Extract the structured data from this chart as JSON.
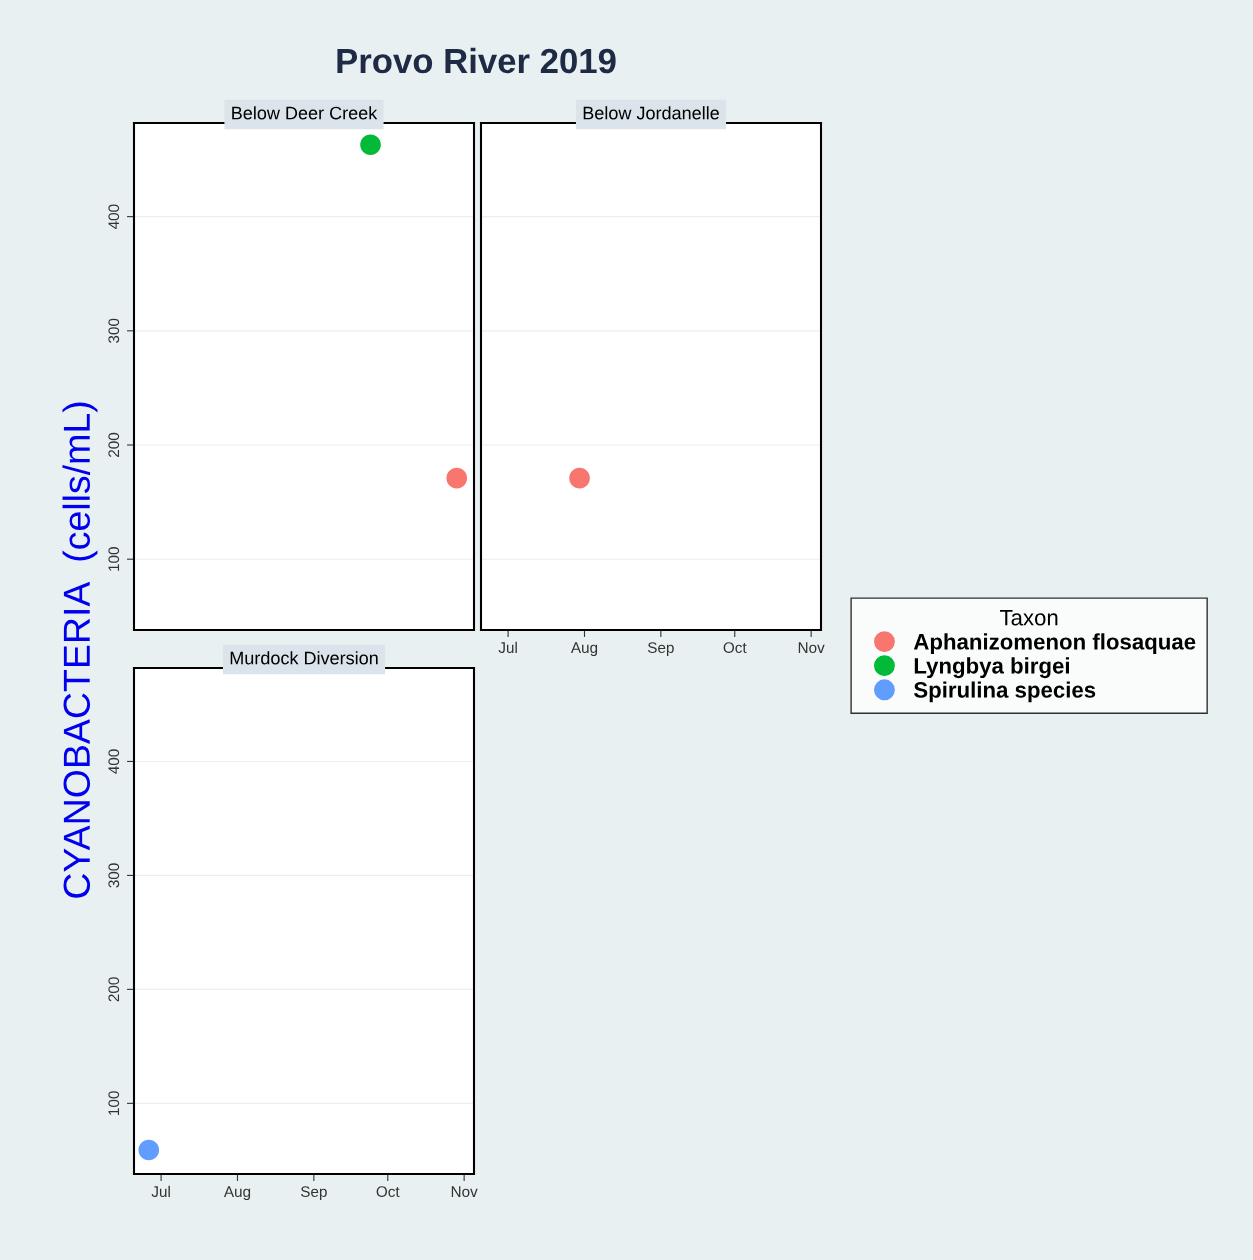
{
  "chart_data": [
    {
      "type": "scatter",
      "title": "Provo River 2019",
      "subtitle": "Below Deer Creek",
      "ylabel": "CYANOBACTERIA  (cells/mL)",
      "legend_title": "Taxon",
      "series": [
        {
          "name": "Aphanizomenon flosaquae",
          "color": "#f8766d",
          "x": [
            "2019-10-29"
          ],
          "values": [
            171
          ]
        },
        {
          "name": "Lyngbya birgei",
          "color": "#00ba38",
          "x": [
            "2019-09-24"
          ],
          "values": [
            463
          ]
        }
      ],
      "xlim": [
        "2019-06-20",
        "2019-11-05"
      ],
      "ylim": [
        38,
        482
      ],
      "yticks": [
        100,
        200,
        300,
        400
      ],
      "grid": "y",
      "marker": "circle",
      "tick_labels": "y",
      "legend": "right"
    },
    {
      "type": "scatter",
      "title": "Below Jordanelle",
      "series": [
        {
          "color": "#f8766d",
          "x": [
            "2019-07-30"
          ],
          "values": [
            171
          ]
        }
      ],
      "xlim": [
        "2019-06-20",
        "2019-11-05"
      ],
      "ylim": [
        38,
        482
      ],
      "xticks": [
        {
          "value": "2019-07-01",
          "label": "Jul"
        },
        {
          "value": "2019-08-01",
          "label": "Aug"
        },
        {
          "value": "2019-09-01",
          "label": "Sep"
        },
        {
          "value": "2019-10-01",
          "label": "Oct"
        },
        {
          "value": "2019-11-01",
          "label": "Nov"
        }
      ],
      "yticks": [
        100,
        200,
        300,
        400
      ],
      "grid": "y",
      "marker": "circle",
      "tick_labels": "x"
    },
    {
      "type": "scatter",
      "title": "Murdock Diversion",
      "series": [
        {
          "name": "Spirulina species",
          "color": "#619cff",
          "x": [
            "2019-06-26"
          ],
          "values": [
            59
          ]
        }
      ],
      "xlim": [
        "2019-06-20",
        "2019-11-05"
      ],
      "ylim": [
        38,
        482
      ],
      "xticks": [
        {
          "value": "2019-07-01",
          "label": "Jul"
        },
        {
          "value": "2019-08-01",
          "label": "Aug"
        },
        {
          "value": "2019-09-01",
          "label": "Sep"
        },
        {
          "value": "2019-10-01",
          "label": "Oct"
        },
        {
          "value": "2019-11-01",
          "label": "Nov"
        }
      ],
      "yticks": [
        100,
        200,
        300,
        400
      ],
      "grid": "y",
      "marker": "circle"
    }
  ]
}
